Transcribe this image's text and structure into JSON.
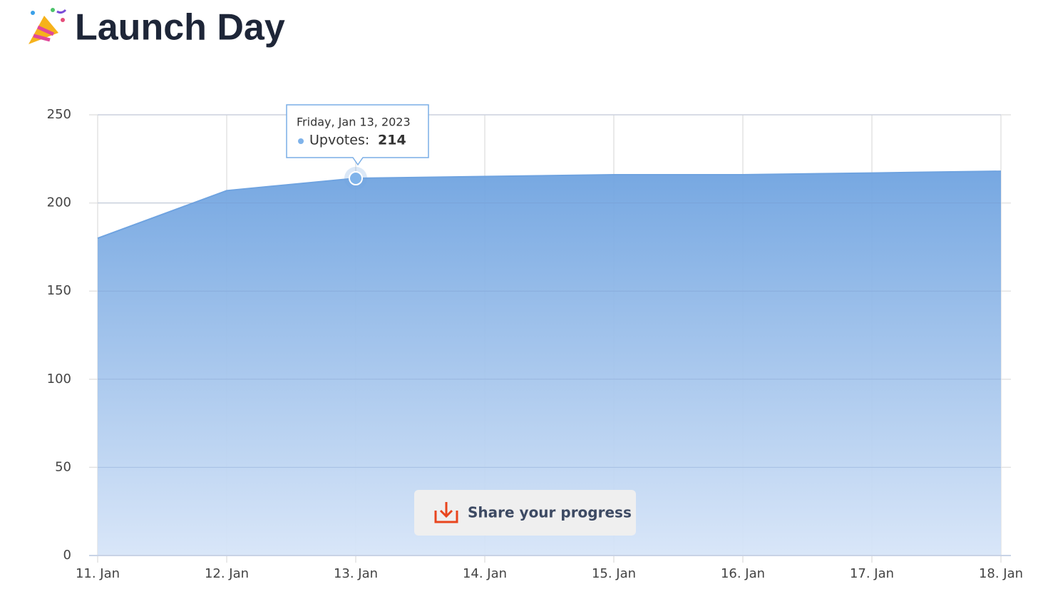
{
  "title": "Launch Day",
  "button": "Share your progress",
  "chart_data": {
    "type": "area",
    "categories": [
      "11. Jan",
      "12. Jan",
      "13. Jan",
      "14. Jan",
      "15. Jan",
      "16. Jan",
      "17. Jan",
      "18. Jan"
    ],
    "series": [
      {
        "name": "Upvotes",
        "color": "#6fa3e0",
        "values": [
          180,
          207,
          214,
          215,
          216,
          216,
          217,
          218
        ]
      }
    ],
    "ylim": [
      0,
      250
    ],
    "yticks": [
      0,
      50,
      100,
      150,
      200,
      250
    ],
    "grid": true,
    "tooltip": {
      "title": "Friday, Jan 13, 2023",
      "label": "Upvotes:"
    }
  }
}
